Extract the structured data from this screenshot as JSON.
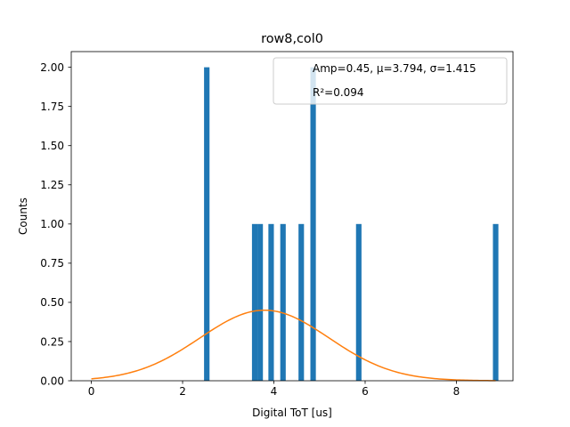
{
  "chart_data": {
    "type": "bar",
    "title": "row8,col0",
    "xlabel": "Digital ToT [us]",
    "ylabel": "Counts",
    "xlim": [
      -0.44,
      9.24
    ],
    "ylim": [
      0,
      2.1
    ],
    "xticks": [
      0,
      2,
      4,
      6,
      8
    ],
    "xtick_labels": [
      "0",
      "2",
      "4",
      "6",
      "8"
    ],
    "yticks": [
      0,
      0.25,
      0.5,
      0.75,
      1.0,
      1.25,
      1.5,
      1.75,
      2.0
    ],
    "ytick_labels": [
      "0.00",
      "0.25",
      "0.50",
      "0.75",
      "1.00",
      "1.25",
      "1.50",
      "1.75",
      "2.00"
    ],
    "bar_width": 0.12,
    "bars": [
      {
        "x": 2.53,
        "value": 2
      },
      {
        "x": 3.58,
        "value": 1
      },
      {
        "x": 3.7,
        "value": 1
      },
      {
        "x": 3.94,
        "value": 1
      },
      {
        "x": 4.2,
        "value": 1
      },
      {
        "x": 4.6,
        "value": 1
      },
      {
        "x": 4.86,
        "value": 2
      },
      {
        "x": 5.86,
        "value": 1
      },
      {
        "x": 8.86,
        "value": 1
      }
    ],
    "fit": {
      "amp": 0.45,
      "mu": 3.794,
      "sigma": 1.415,
      "x_range": [
        0,
        8.86
      ]
    },
    "legend": {
      "placement": "top-right",
      "line1": "Amp=0.45, μ=3.794, σ=1.415",
      "line2": "R²=0.094"
    },
    "colors": {
      "bars": "#1f77b4",
      "fit": "#ff7f0e"
    }
  }
}
